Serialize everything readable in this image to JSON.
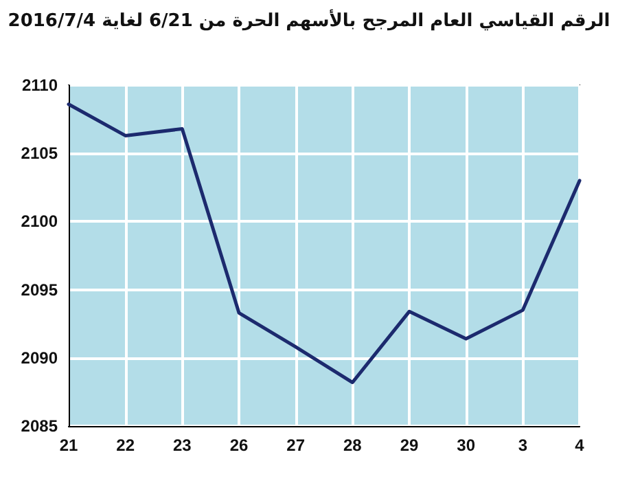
{
  "chart_data": {
    "type": "line",
    "title": "الرقم القياسي العام المرجح بالأسهم الحرة من 6/21 لغاية 2016/7/4",
    "categories": [
      "21",
      "22",
      "23",
      "26",
      "27",
      "28",
      "29",
      "30",
      "3",
      "4"
    ],
    "series": [
      {
        "color": "#1c2a6e",
        "values": [
          2108.6,
          2106.3,
          2106.8,
          2093.3,
          2090.8,
          2088.2,
          2093.4,
          2091.4,
          2093.5,
          2103
        ]
      }
    ],
    "ylim": [
      2085,
      2110
    ],
    "yticks": [
      2085,
      2090,
      2095,
      2100,
      2105,
      2110
    ],
    "grid": true,
    "marker": "none",
    "line_style": "solid"
  }
}
